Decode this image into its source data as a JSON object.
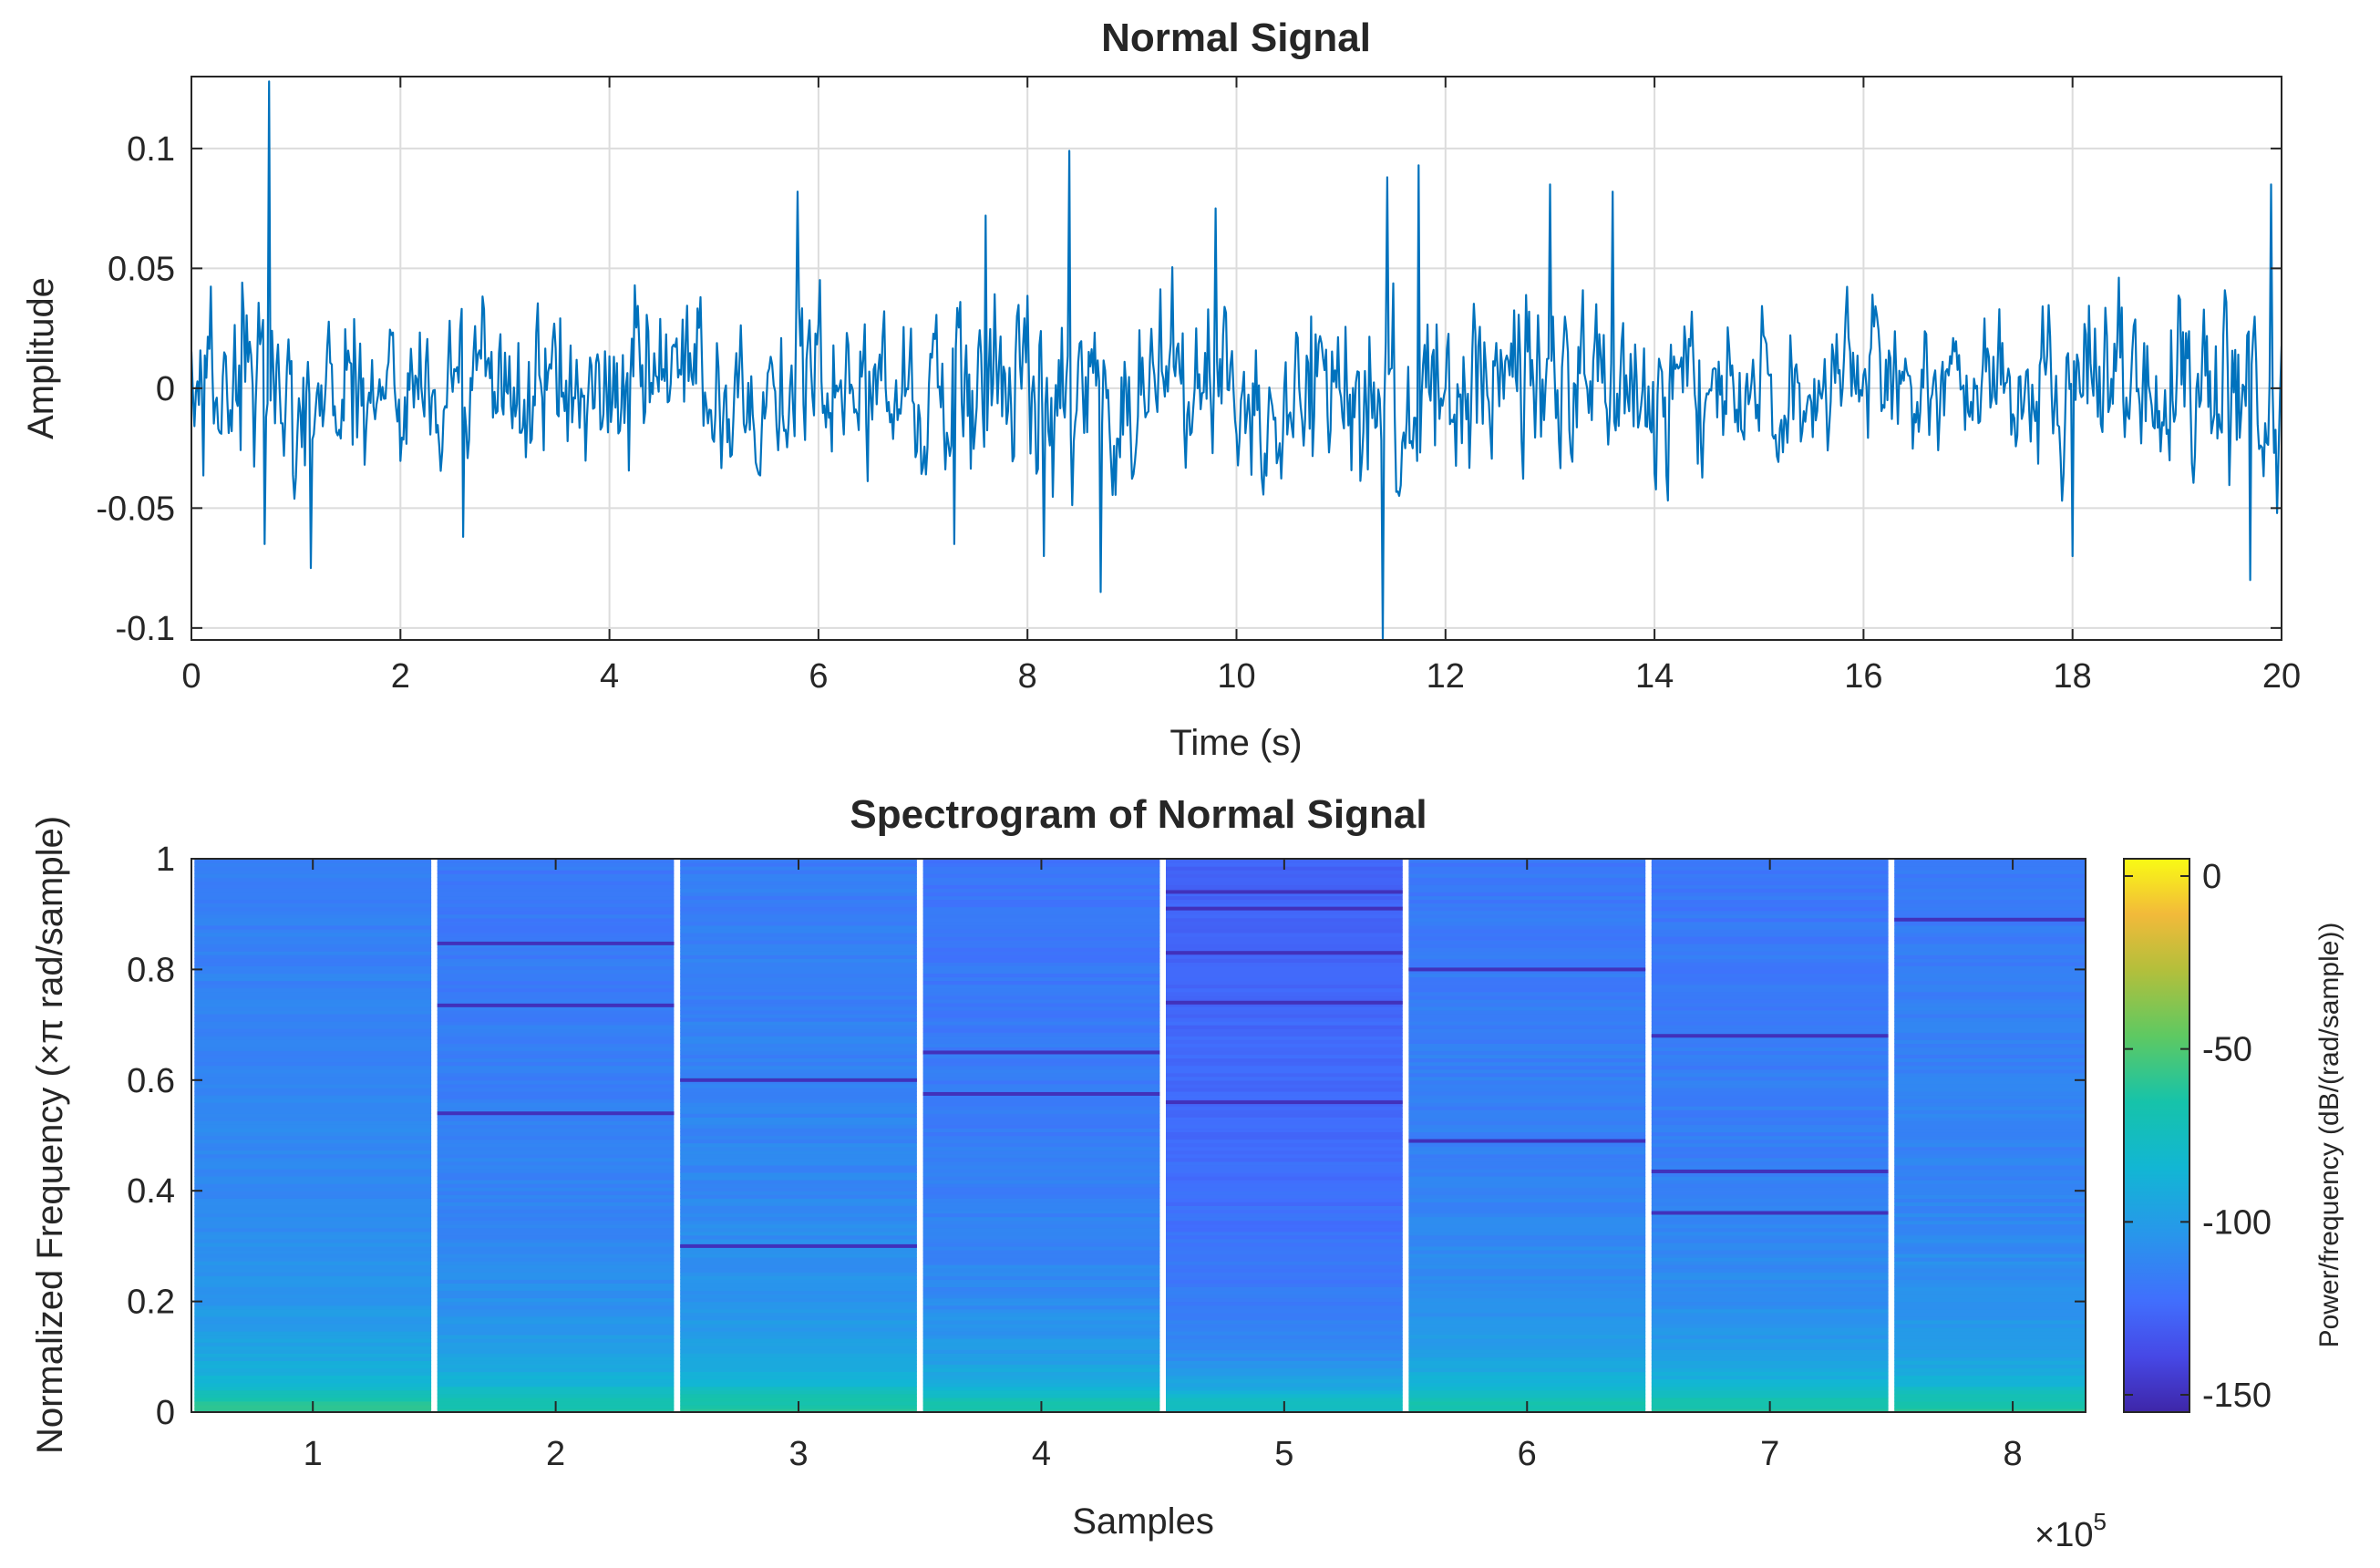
{
  "chart_data": [
    {
      "type": "line",
      "title": "Normal Signal",
      "xlabel": "Time (s)",
      "ylabel": "Amplitude",
      "xlim": [
        0,
        20
      ],
      "ylim": [
        -0.105,
        0.13
      ],
      "xticks": [
        "0",
        "2",
        "4",
        "6",
        "8",
        "10",
        "12",
        "14",
        "16",
        "18",
        "20"
      ],
      "yticks": [
        {
          "value": 0.1,
          "label": "0.1"
        },
        {
          "value": 0.05,
          "label": "0.05"
        },
        {
          "value": 0,
          "label": "0"
        },
        {
          "value": -0.05,
          "label": "-0.05"
        },
        {
          "value": -0.1,
          "label": "-0.1"
        }
      ],
      "grid": true,
      "line_color": "#0072BD",
      "series": [
        {
          "envelope": [
            {
              "t": 0.0,
              "a": 0.045
            },
            {
              "t": 0.5,
              "a": 0.06
            },
            {
              "t": 1.0,
              "a": 0.055
            },
            {
              "t": 2.0,
              "a": 0.04
            },
            {
              "t": 3.0,
              "a": 0.045
            },
            {
              "t": 4.0,
              "a": 0.042
            },
            {
              "t": 5.0,
              "a": 0.04
            },
            {
              "t": 6.0,
              "a": 0.05
            },
            {
              "t": 7.0,
              "a": 0.045
            },
            {
              "t": 8.0,
              "a": 0.055
            },
            {
              "t": 9.0,
              "a": 0.05
            },
            {
              "t": 10.0,
              "a": 0.045
            },
            {
              "t": 11.0,
              "a": 0.055
            },
            {
              "t": 12.0,
              "a": 0.045
            },
            {
              "t": 13.0,
              "a": 0.045
            },
            {
              "t": 14.0,
              "a": 0.045
            },
            {
              "t": 15.0,
              "a": 0.042
            },
            {
              "t": 16.0,
              "a": 0.04
            },
            {
              "t": 17.0,
              "a": 0.042
            },
            {
              "t": 18.0,
              "a": 0.045
            },
            {
              "t": 19.0,
              "a": 0.05
            },
            {
              "t": 20.0,
              "a": 0.05
            }
          ],
          "peaks": [
            {
              "t": 0.75,
              "y": 0.128
            },
            {
              "t": 0.7,
              "y": -0.065
            },
            {
              "t": 1.15,
              "y": -0.075
            },
            {
              "t": 2.6,
              "y": -0.062
            },
            {
              "t": 5.8,
              "y": 0.082
            },
            {
              "t": 7.3,
              "y": -0.065
            },
            {
              "t": 7.6,
              "y": 0.072
            },
            {
              "t": 8.15,
              "y": -0.07
            },
            {
              "t": 8.4,
              "y": 0.099
            },
            {
              "t": 8.7,
              "y": -0.085
            },
            {
              "t": 9.8,
              "y": 0.075
            },
            {
              "t": 11.4,
              "y": -0.105
            },
            {
              "t": 11.45,
              "y": 0.088
            },
            {
              "t": 11.75,
              "y": 0.093
            },
            {
              "t": 13.0,
              "y": 0.085
            },
            {
              "t": 13.6,
              "y": 0.082
            },
            {
              "t": 18.0,
              "y": -0.07
            },
            {
              "t": 19.7,
              "y": -0.08
            },
            {
              "t": 19.9,
              "y": 0.085
            }
          ]
        }
      ]
    },
    {
      "type": "heatmap",
      "title": "Spectrogram of Normal Signal",
      "xlabel": "Samples",
      "ylabel": "Normalized Frequency  (×π rad/sample)",
      "xlim": [
        0.5,
        8.3
      ],
      "ylim": [
        0,
        1
      ],
      "xticks": [
        "1",
        "2",
        "3",
        "4",
        "5",
        "6",
        "7",
        "8"
      ],
      "yticks": [
        "0",
        "0.2",
        "0.4",
        "0.6",
        "0.8",
        "1"
      ],
      "x_exponent_base": "×10",
      "x_exponent_power": "5",
      "segments": 8,
      "segment_width": 0.975,
      "segment_base_power": [
        -115,
        -118,
        -116,
        -120,
        -128,
        -118,
        -119,
        -117
      ],
      "low_freq_profile": [
        {
          "f": 0.0,
          "p": -60
        },
        {
          "f": 0.02,
          "p": -64
        },
        {
          "f": 0.05,
          "p": -82
        },
        {
          "f": 0.1,
          "p": -95
        },
        {
          "f": 0.2,
          "p": -104
        },
        {
          "f": 0.4,
          "p": -110
        },
        {
          "f": 1.0,
          "p": -115
        }
      ],
      "dark_lines": [
        {
          "seg": 2,
          "f": 0.847
        },
        {
          "seg": 2,
          "f": 0.735
        },
        {
          "seg": 2,
          "f": 0.54
        },
        {
          "seg": 3,
          "f": 0.6
        },
        {
          "seg": 3,
          "f": 0.3
        },
        {
          "seg": 4,
          "f": 0.65
        },
        {
          "seg": 4,
          "f": 0.575
        },
        {
          "seg": 5,
          "f": 0.94
        },
        {
          "seg": 5,
          "f": 0.91
        },
        {
          "seg": 5,
          "f": 0.83
        },
        {
          "seg": 5,
          "f": 0.74
        },
        {
          "seg": 5,
          "f": 0.56
        },
        {
          "seg": 6,
          "f": 0.8
        },
        {
          "seg": 6,
          "f": 0.49
        },
        {
          "seg": 7,
          "f": 0.68
        },
        {
          "seg": 7,
          "f": 0.435
        },
        {
          "seg": 7,
          "f": 0.36
        },
        {
          "seg": 8,
          "f": 0.89
        }
      ],
      "colorbar": {
        "label": "Power/frequency (dB/(rad/sample))",
        "range": [
          -155,
          5
        ],
        "ticks": [
          {
            "value": 0,
            "label": "0"
          },
          {
            "value": -50,
            "label": "-50"
          },
          {
            "value": -100,
            "label": "-100"
          },
          {
            "value": -150,
            "label": "-150"
          }
        ],
        "colormap": "parula"
      }
    }
  ]
}
